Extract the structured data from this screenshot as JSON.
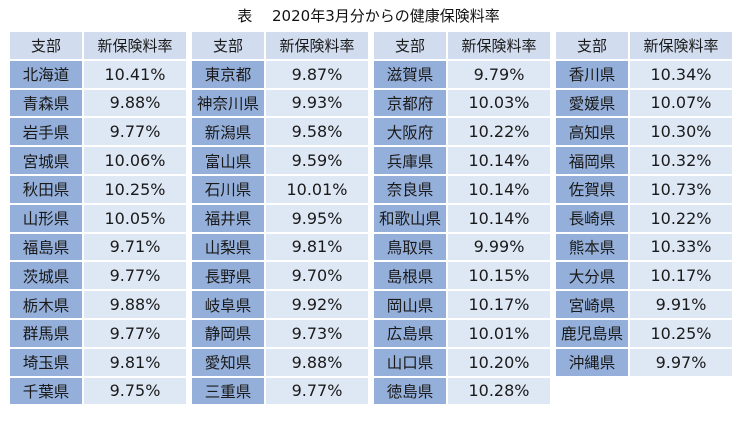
{
  "title": "表　 2020年3月分からの健康保険料率",
  "headers": {
    "branch": "支部",
    "rate": "新保険料率"
  },
  "columns": [
    [
      {
        "branch": "北海道",
        "rate": "10.41%"
      },
      {
        "branch": "青森県",
        "rate": "9.88%"
      },
      {
        "branch": "岩手県",
        "rate": "9.77%"
      },
      {
        "branch": "宮城県",
        "rate": "10.06%"
      },
      {
        "branch": "秋田県",
        "rate": "10.25%"
      },
      {
        "branch": "山形県",
        "rate": "10.05%"
      },
      {
        "branch": "福島県",
        "rate": "9.71%"
      },
      {
        "branch": "茨城県",
        "rate": "9.77%"
      },
      {
        "branch": "栃木県",
        "rate": "9.88%"
      },
      {
        "branch": "群馬県",
        "rate": "9.77%"
      },
      {
        "branch": "埼玉県",
        "rate": "9.81%"
      },
      {
        "branch": "千葉県",
        "rate": "9.75%"
      }
    ],
    [
      {
        "branch": "東京都",
        "rate": "9.87%"
      },
      {
        "branch": "神奈川県",
        "rate": "9.93%"
      },
      {
        "branch": "新潟県",
        "rate": "9.58%"
      },
      {
        "branch": "富山県",
        "rate": "9.59%"
      },
      {
        "branch": "石川県",
        "rate": "10.01%"
      },
      {
        "branch": "福井県",
        "rate": "9.95%"
      },
      {
        "branch": "山梨県",
        "rate": "9.81%"
      },
      {
        "branch": "長野県",
        "rate": "9.70%"
      },
      {
        "branch": "岐阜県",
        "rate": "9.92%"
      },
      {
        "branch": "静岡県",
        "rate": "9.73%"
      },
      {
        "branch": "愛知県",
        "rate": "9.88%"
      },
      {
        "branch": "三重県",
        "rate": "9.77%"
      }
    ],
    [
      {
        "branch": "滋賀県",
        "rate": "9.79%"
      },
      {
        "branch": "京都府",
        "rate": "10.03%"
      },
      {
        "branch": "大阪府",
        "rate": "10.22%"
      },
      {
        "branch": "兵庫県",
        "rate": "10.14%"
      },
      {
        "branch": "奈良県",
        "rate": "10.14%"
      },
      {
        "branch": "和歌山県",
        "rate": "10.14%"
      },
      {
        "branch": "鳥取県",
        "rate": "9.99%"
      },
      {
        "branch": "島根県",
        "rate": "10.15%"
      },
      {
        "branch": "岡山県",
        "rate": "10.17%"
      },
      {
        "branch": "広島県",
        "rate": "10.01%"
      },
      {
        "branch": "山口県",
        "rate": "10.20%"
      },
      {
        "branch": "徳島県",
        "rate": "10.28%"
      }
    ],
    [
      {
        "branch": "香川県",
        "rate": "10.34%"
      },
      {
        "branch": "愛媛県",
        "rate": "10.07%"
      },
      {
        "branch": "高知県",
        "rate": "10.30%"
      },
      {
        "branch": "福岡県",
        "rate": "10.32%"
      },
      {
        "branch": "佐賀県",
        "rate": "10.73%"
      },
      {
        "branch": "長崎県",
        "rate": "10.22%"
      },
      {
        "branch": "熊本県",
        "rate": "10.33%"
      },
      {
        "branch": "大分県",
        "rate": "10.17%"
      },
      {
        "branch": "宮崎県",
        "rate": "9.91%"
      },
      {
        "branch": "鹿児島県",
        "rate": "10.25%"
      },
      {
        "branch": "沖縄県",
        "rate": "9.97%"
      }
    ]
  ],
  "colors": {
    "header_bg": "#d1dcee",
    "branch_bg": "#94afd9",
    "rate_bg": "#dee7f4"
  }
}
